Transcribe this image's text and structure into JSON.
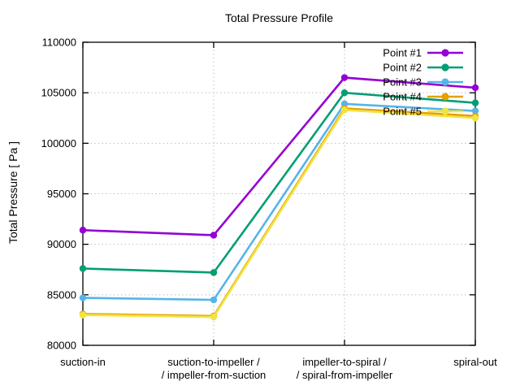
{
  "chart_data": {
    "type": "line",
    "title": "Total Pressure Profile",
    "xlabel": "",
    "ylabel": "Total Pressure [ Pa ]",
    "ylim": [
      80000,
      110000
    ],
    "yticks": [
      80000,
      85000,
      90000,
      95000,
      100000,
      105000,
      110000
    ],
    "categories": [
      "suction-in",
      "suction-to-impeller /\n/ impeller-from-suction",
      "impeller-to-spiral /\n/ spiral-from-impeller",
      "spiral-out"
    ],
    "grid": true,
    "legend_position": "top-right-inside",
    "colors": {
      "axis": "#000000",
      "gridline": "#bdbdbd",
      "background": "#ffffff"
    },
    "series": [
      {
        "name": "Point #1",
        "color": "#9400D3",
        "values": [
          91400,
          90900,
          106500,
          105500
        ]
      },
      {
        "name": "Point #2",
        "color": "#009E73",
        "values": [
          87600,
          87200,
          105000,
          104000
        ]
      },
      {
        "name": "Point #3",
        "color": "#56B4E9",
        "values": [
          84700,
          84500,
          103900,
          103200
        ]
      },
      {
        "name": "Point #4",
        "color": "#E69F00",
        "values": [
          83100,
          82900,
          103450,
          102700
        ]
      },
      {
        "name": "Point #5",
        "color": "#F0E442",
        "values": [
          83000,
          82800,
          103300,
          102500
        ]
      }
    ]
  }
}
